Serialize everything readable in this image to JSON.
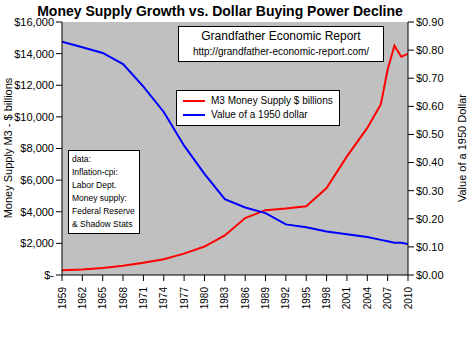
{
  "chart_data": {
    "type": "line",
    "title": "Money Supply Growth vs. Dollar Buying Power Decline",
    "annotations": [
      "Grandfather Economic Report",
      "http://grandfather-economic-report.com/"
    ],
    "notes": [
      "data:",
      "Inflation-cpi:",
      "Labor Dept.",
      "Money supply:",
      "Federal Reserve",
      "& Shadow Stats"
    ],
    "y_label": "Money Supply M3 - $ billions",
    "y2_label": "Value of a 1950 Dollar",
    "x": [
      1959,
      1962,
      1965,
      1968,
      1971,
      1974,
      1977,
      1980,
      1983,
      1986,
      1989,
      1992,
      1995,
      1998,
      2001,
      2004,
      2006,
      2007,
      2008,
      2009,
      2010
    ],
    "xlim": [
      1959,
      2010
    ],
    "xticks": [
      1959,
      1962,
      1965,
      1968,
      1971,
      1974,
      1977,
      1980,
      1983,
      1986,
      1989,
      1992,
      1995,
      1998,
      2001,
      2004,
      2007,
      2010
    ],
    "ylim": [
      0,
      16000
    ],
    "yticks": [
      {
        "value": 0,
        "label": "$-"
      },
      {
        "value": 2000,
        "label": "$2,000"
      },
      {
        "value": 4000,
        "label": "$4,000"
      },
      {
        "value": 6000,
        "label": "$6,000"
      },
      {
        "value": 8000,
        "label": "$8,000"
      },
      {
        "value": 10000,
        "label": "$10,000"
      },
      {
        "value": 12000,
        "label": "$12,000"
      },
      {
        "value": 14000,
        "label": "$14,000"
      },
      {
        "value": 16000,
        "label": "$16,000"
      }
    ],
    "y2lim": [
      0,
      0.9
    ],
    "y2ticks": [
      {
        "value": 0,
        "label": "$0.00"
      },
      {
        "value": 0.1,
        "label": "$0.10"
      },
      {
        "value": 0.2,
        "label": "$0.20"
      },
      {
        "value": 0.3,
        "label": "$0.30"
      },
      {
        "value": 0.4,
        "label": "$0.40"
      },
      {
        "value": 0.5,
        "label": "$0.50"
      },
      {
        "value": 0.6,
        "label": "$0.60"
      },
      {
        "value": 0.7,
        "label": "$0.70"
      },
      {
        "value": 0.8,
        "label": "$0.80"
      },
      {
        "value": 0.9,
        "label": "$0.90"
      }
    ],
    "grid": false,
    "legend": "top",
    "series": [
      {
        "name": "M3 Money Supply $ billions",
        "color": "#ff0000",
        "values": [
          300,
          350,
          450,
          580,
          780,
          1000,
          1350,
          1800,
          2500,
          3600,
          4100,
          4200,
          4350,
          5500,
          7500,
          9300,
          10800,
          13000,
          14500,
          13800,
          14000
        ]
      },
      {
        "name": "Value of a 1950 dollar",
        "color": "#0000ff",
        "axis": "y2",
        "values": [
          0.83,
          0.81,
          0.79,
          0.75,
          0.67,
          0.58,
          0.46,
          0.36,
          0.27,
          0.24,
          0.22,
          0.18,
          0.17,
          0.155,
          0.145,
          0.135,
          0.125,
          0.12,
          0.115,
          0.115,
          0.11
        ]
      }
    ]
  }
}
